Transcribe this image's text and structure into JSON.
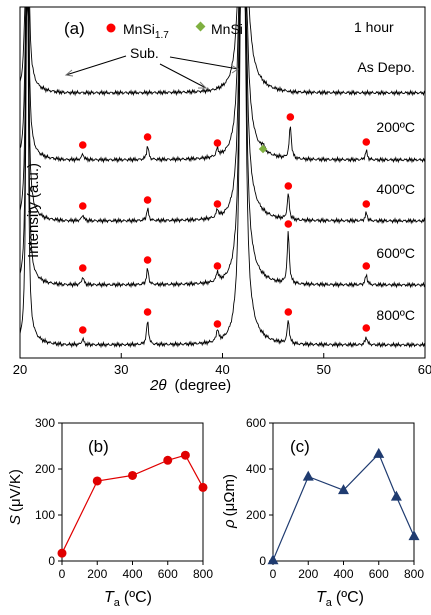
{
  "chart_data": [
    {
      "type": "line",
      "panel_label": "(a)",
      "xlabel_italic": "2θ",
      "xlabel_rest": "(degree)",
      "ylabel": "Intensity (a.u.)",
      "xlim": [
        20,
        60
      ],
      "xticks": [
        20,
        30,
        40,
        50,
        60
      ],
      "legend": {
        "mnsi17_prefix": "MnSi",
        "mnsi17_sub": "1.7",
        "mnsi": "MnSi",
        "mnsi17_color": "#ff0000",
        "mnsi_color": "#7fb040"
      },
      "time_label": "1 hour",
      "substrate_label": "Sub.",
      "substrate_peaks": [
        20.7,
        42.0
      ],
      "series": [
        {
          "name": "As Depo.",
          "peaks": []
        },
        {
          "name": "200ºC",
          "peaks": [
            {
              "x": 26.2,
              "h": 6,
              "m": "mnsi17"
            },
            {
              "x": 32.6,
              "h": 14,
              "m": "mnsi17"
            },
            {
              "x": 39.5,
              "h": 8,
              "m": "mnsi17"
            },
            {
              "x": 44.0,
              "h": 6,
              "m": "mnsi"
            },
            {
              "x": 46.7,
              "h": 34,
              "m": "mnsi17"
            },
            {
              "x": 54.2,
              "h": 9,
              "m": "mnsi17"
            }
          ]
        },
        {
          "name": "400ºC",
          "peaks": [
            {
              "x": 26.2,
              "h": 6,
              "m": "mnsi17"
            },
            {
              "x": 32.6,
              "h": 12,
              "m": "mnsi17"
            },
            {
              "x": 39.5,
              "h": 8,
              "m": "mnsi17"
            },
            {
              "x": 46.5,
              "h": 26,
              "m": "mnsi17"
            },
            {
              "x": 54.2,
              "h": 8,
              "m": "mnsi17"
            }
          ]
        },
        {
          "name": "600ºC",
          "peaks": [
            {
              "x": 26.2,
              "h": 8,
              "m": "mnsi17"
            },
            {
              "x": 32.6,
              "h": 16,
              "m": "mnsi17"
            },
            {
              "x": 39.5,
              "h": 10,
              "m": "mnsi17"
            },
            {
              "x": 46.5,
              "h": 52,
              "m": "mnsi17"
            },
            {
              "x": 54.2,
              "h": 10,
              "m": "mnsi17"
            }
          ]
        },
        {
          "name": "800ºC",
          "peaks": [
            {
              "x": 26.2,
              "h": 6,
              "m": "mnsi17"
            },
            {
              "x": 32.6,
              "h": 24,
              "m": "mnsi17"
            },
            {
              "x": 39.5,
              "h": 12,
              "m": "mnsi17"
            },
            {
              "x": 46.5,
              "h": 24,
              "m": "mnsi17"
            },
            {
              "x": 54.2,
              "h": 8,
              "m": "mnsi17"
            }
          ]
        }
      ]
    },
    {
      "type": "line",
      "panel_label": "(b)",
      "xlabel_italic": "T",
      "xlabel_sub": "a",
      "xlabel_rest": "(ºC)",
      "ylabel_italic": "S",
      "ylabel_rest": "(μV/K)",
      "xlim": [
        0,
        800
      ],
      "ylim": [
        0,
        300
      ],
      "xticks": [
        0,
        200,
        400,
        600,
        800
      ],
      "yticks": [
        0,
        100,
        200,
        300
      ],
      "color": "#e00000",
      "marker": "circle",
      "x": [
        0,
        200,
        400,
        600,
        700,
        800
      ],
      "y": [
        17,
        174,
        186,
        219,
        230,
        160
      ]
    },
    {
      "type": "line",
      "panel_label": "(c)",
      "xlabel_italic": "T",
      "xlabel_sub": "a",
      "xlabel_rest": "(ºC)",
      "ylabel_italic": "ρ",
      "ylabel_rest": "(μΩm)",
      "xlim": [
        0,
        800
      ],
      "ylim": [
        0,
        600
      ],
      "xticks": [
        0,
        200,
        400,
        600,
        800
      ],
      "yticks": [
        0,
        200,
        400,
        600
      ],
      "color": "#1f3b70",
      "marker": "triangle",
      "x": [
        0,
        200,
        400,
        600,
        700,
        800
      ],
      "y": [
        3,
        367,
        308,
        466,
        280,
        108
      ]
    }
  ]
}
